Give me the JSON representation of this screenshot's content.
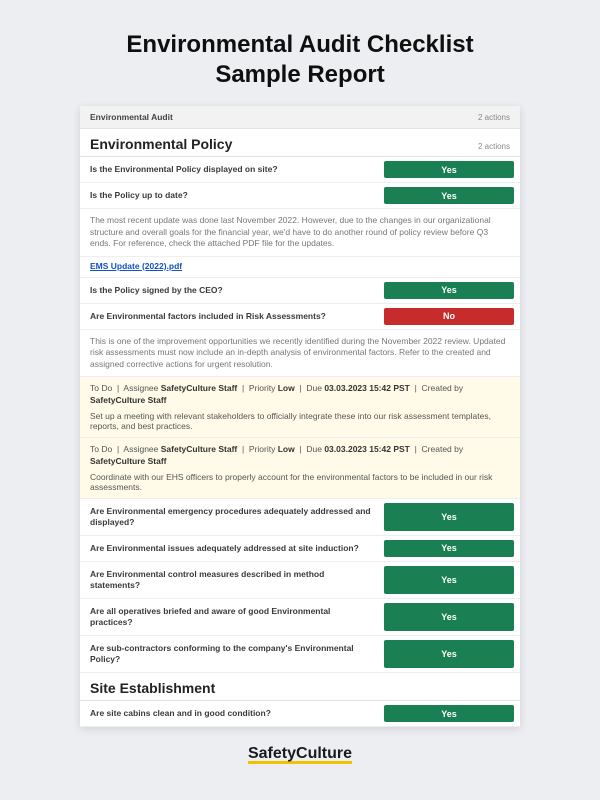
{
  "page_title_l1": "Environmental Audit Checklist",
  "page_title_l2": "Sample Report",
  "colors": {
    "yes": "#1a7f52",
    "no": "#c72c2c",
    "grey": "#f2f2f2"
  },
  "header": {
    "title": "Environmental Audit",
    "actions": "2 actions"
  },
  "section1": {
    "title": "Environmental Policy",
    "actions": "2 actions",
    "q1": {
      "label": "Is the Environmental Policy displayed on site?",
      "answer": "Yes",
      "color": "#1a7f52"
    },
    "q2": {
      "label": "Is the Policy up to date?",
      "answer": "Yes",
      "color": "#1a7f52"
    },
    "note1": "The most recent update was done last November 2022. However, due to the changes in our organizational structure and overall goals for the financial year, we'd have to do another round of policy review before Q3 ends. For reference, check the attached PDF file for the updates.",
    "attachment": "EMS Update (2022).pdf",
    "q3": {
      "label": "Is the Policy signed by the CEO?",
      "answer": "Yes",
      "color": "#1a7f52"
    },
    "q4": {
      "label": "Are Environmental factors included in Risk Assessments?",
      "answer": "No",
      "color": "#c72c2c"
    },
    "note2": "This is one of the improvement opportunities we recently identified during the November 2022 review. Updated risk assessments must now include an in-depth analysis of environmental factors. Refer to the created and assigned corrective actions for urgent resolution.",
    "todo1": {
      "status": "To Do",
      "assignee": "SafetyCulture Staff",
      "priority": "Low",
      "due": "03.03.2023 15:42 PST",
      "creator": "SafetyCulture Staff",
      "body": "Set up a meeting with relevant stakeholders to officially integrate these into our risk assessment templates, reports, and best practices."
    },
    "todo2": {
      "status": "To Do",
      "assignee": "SafetyCulture Staff",
      "priority": "Low",
      "due": "03.03.2023 15:42 PST",
      "creator": "SafetyCulture Staff",
      "body": "Coordinate with our EHS officers to properly account for the environmental factors to be included in our risk assessments."
    },
    "q5": {
      "label": "Are Environmental emergency procedures adequately addressed and displayed?",
      "answer": "Yes",
      "color": "#1a7f52"
    },
    "q6": {
      "label": "Are Environmental issues adequately addressed at site induction?",
      "answer": "Yes",
      "color": "#1a7f52"
    },
    "q7": {
      "label": "Are Environmental control measures described in method statements?",
      "answer": "Yes",
      "color": "#1a7f52"
    },
    "q8": {
      "label": "Are all operatives briefed and aware of good Environmental practices?",
      "answer": "Yes",
      "color": "#1a7f52"
    },
    "q9": {
      "label": "Are sub-contractors conforming to the company's Environmental Policy?",
      "answer": "Yes",
      "color": "#1a7f52"
    }
  },
  "section2": {
    "title": "Site Establishment",
    "q1": {
      "label": "Are site cabins clean and in good condition?",
      "answer": "Yes",
      "color": "#1a7f52"
    }
  },
  "logo": {
    "part1": "Safety",
    "part2": "Culture"
  }
}
